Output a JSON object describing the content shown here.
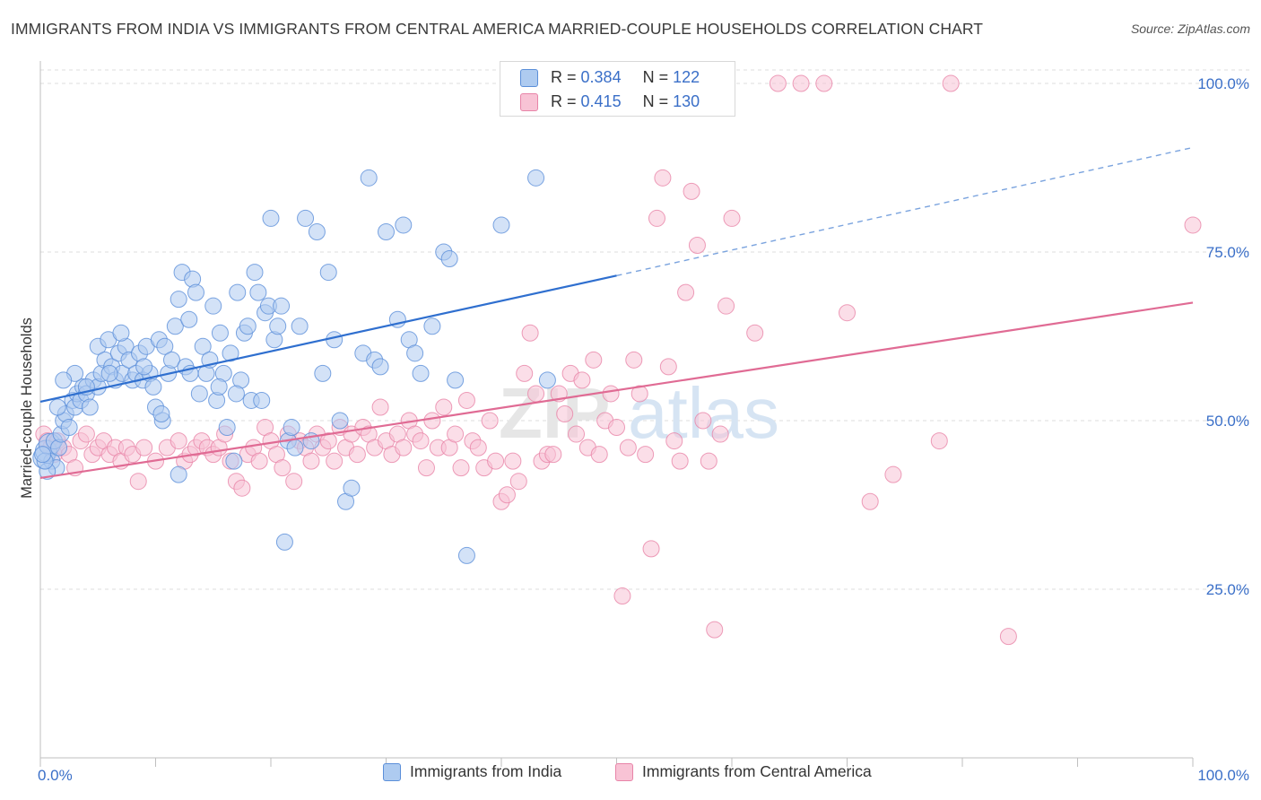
{
  "title": "IMMIGRANTS FROM INDIA VS IMMIGRANTS FROM CENTRAL AMERICA MARRIED-COUPLE HOUSEHOLDS CORRELATION CHART",
  "source": "Source: ZipAtlas.com",
  "watermark": {
    "zip": "ZIP",
    "atlas": "atlas"
  },
  "stats": [
    {
      "r_label": "R =",
      "r_value": "0.384",
      "n_label": "N =",
      "n_value": "122",
      "color": "#5b8fd9",
      "fill": "#aecbf0"
    },
    {
      "r_label": "R =",
      "r_value": "0.415",
      "n_label": "N =",
      "n_value": "130",
      "color": "#e884a8",
      "fill": "#f8c3d5"
    }
  ],
  "legend": [
    {
      "label": "Immigrants from India",
      "color": "#5b8fd9",
      "fill": "#aecbf0"
    },
    {
      "label": "Immigrants from Central America",
      "color": "#e884a8",
      "fill": "#f8c3d5"
    }
  ],
  "chart_data": {
    "type": "scatter",
    "title": "IMMIGRANTS FROM INDIA VS IMMIGRANTS FROM CENTRAL AMERICA MARRIED-COUPLE HOUSEHOLDS CORRELATION CHART",
    "xlabel": "",
    "ylabel": "Married-couple Households",
    "xlim": [
      0,
      100
    ],
    "ylim": [
      0,
      102
    ],
    "x_tick_labels": [
      "0.0%",
      "100.0%"
    ],
    "y_ticks": [
      25,
      50,
      75,
      100
    ],
    "y_tick_labels": [
      "25.0%",
      "50.0%",
      "75.0%",
      "100.0%"
    ],
    "grid": true,
    "legend_position": "bottom",
    "series": [
      {
        "name": "Immigrants from India",
        "color": "#5b8fd9",
        "fill": "#aecbf0",
        "trend": {
          "x0": 0,
          "y0": 52.8,
          "x1": 50,
          "y1": 71.5,
          "dashed_to_x": 100,
          "dashed_to_y": 90.5
        },
        "points": [
          [
            0.3,
            44.5
          ],
          [
            0.5,
            45.5
          ],
          [
            0.8,
            46.5
          ],
          [
            1,
            44
          ],
          [
            1.2,
            47
          ],
          [
            1.4,
            43
          ],
          [
            1.6,
            46
          ],
          [
            1.8,
            48
          ],
          [
            2,
            50
          ],
          [
            2.2,
            51
          ],
          [
            2.5,
            49
          ],
          [
            2.8,
            53
          ],
          [
            3,
            52
          ],
          [
            3.2,
            54
          ],
          [
            3.5,
            53
          ],
          [
            3.7,
            55
          ],
          [
            4,
            54
          ],
          [
            4.3,
            52
          ],
          [
            4.6,
            56
          ],
          [
            5,
            55
          ],
          [
            5,
            61
          ],
          [
            5.3,
            57
          ],
          [
            5.6,
            59
          ],
          [
            5.9,
            62
          ],
          [
            6.2,
            58
          ],
          [
            6.5,
            56
          ],
          [
            6.8,
            60
          ],
          [
            7.1,
            57
          ],
          [
            7.4,
            61
          ],
          [
            7.7,
            59
          ],
          [
            8,
            56
          ],
          [
            8.3,
            57
          ],
          [
            8.6,
            60
          ],
          [
            8.9,
            56
          ],
          [
            9.2,
            61
          ],
          [
            9.5,
            57
          ],
          [
            9.8,
            55
          ],
          [
            10,
            52
          ],
          [
            10.3,
            62
          ],
          [
            10.6,
            50
          ],
          [
            10.8,
            61
          ],
          [
            11.1,
            57
          ],
          [
            11.4,
            59
          ],
          [
            11.7,
            64
          ],
          [
            12,
            68
          ],
          [
            12.3,
            72
          ],
          [
            12.6,
            58
          ],
          [
            12.9,
            65
          ],
          [
            13.2,
            71
          ],
          [
            13.5,
            69
          ],
          [
            13.8,
            54
          ],
          [
            14.1,
            61
          ],
          [
            14.4,
            57
          ],
          [
            14.7,
            59
          ],
          [
            15,
            67
          ],
          [
            15.3,
            53
          ],
          [
            15.6,
            63
          ],
          [
            15.9,
            57
          ],
          [
            16.2,
            49
          ],
          [
            16.5,
            60
          ],
          [
            16.8,
            44
          ],
          [
            17.1,
            69
          ],
          [
            17.4,
            56
          ],
          [
            17.7,
            63
          ],
          [
            18,
            64
          ],
          [
            18.3,
            53
          ],
          [
            18.6,
            72
          ],
          [
            18.9,
            69
          ],
          [
            19.2,
            53
          ],
          [
            19.5,
            66
          ],
          [
            19.8,
            67
          ],
          [
            20,
            80
          ],
          [
            20.3,
            62
          ],
          [
            20.6,
            64
          ],
          [
            20.9,
            67
          ],
          [
            21.2,
            32
          ],
          [
            21.5,
            47
          ],
          [
            21.8,
            49
          ],
          [
            22.1,
            46
          ],
          [
            22.5,
            64
          ],
          [
            23,
            80
          ],
          [
            23.5,
            47
          ],
          [
            24,
            78
          ],
          [
            24.5,
            57
          ],
          [
            25,
            72
          ],
          [
            25.5,
            62
          ],
          [
            26,
            50
          ],
          [
            26.5,
            38
          ],
          [
            27,
            40
          ],
          [
            28,
            60
          ],
          [
            28.5,
            86
          ],
          [
            29,
            59
          ],
          [
            29.5,
            58
          ],
          [
            30,
            78
          ],
          [
            31,
            65
          ],
          [
            31.5,
            79
          ],
          [
            32,
            62
          ],
          [
            32.5,
            60
          ],
          [
            33,
            57
          ],
          [
            34,
            64
          ],
          [
            35,
            75
          ],
          [
            35.5,
            74
          ],
          [
            36,
            56
          ],
          [
            37,
            30
          ],
          [
            40,
            79
          ],
          [
            43,
            86
          ],
          [
            44,
            56
          ],
          [
            12,
            42
          ],
          [
            10.5,
            51
          ],
          [
            15.5,
            55
          ],
          [
            13,
            57
          ],
          [
            17,
            54
          ],
          [
            6,
            57
          ],
          [
            7,
            63
          ],
          [
            9,
            58
          ],
          [
            4,
            55
          ],
          [
            3,
            57
          ],
          [
            2,
            56
          ],
          [
            1.5,
            52
          ],
          [
            0.6,
            42.5
          ],
          [
            0.4,
            44
          ],
          [
            0.2,
            45
          ]
        ]
      },
      {
        "name": "Immigrants from Central America",
        "color": "#e884a8",
        "fill": "#f8c3d5",
        "trend": {
          "x0": 0,
          "y0": 41.5,
          "x1": 100,
          "y1": 67.5
        },
        "points": [
          [
            0.3,
            48
          ],
          [
            0.6,
            47
          ],
          [
            0.9,
            46
          ],
          [
            1.2,
            45
          ],
          [
            1.5,
            47
          ],
          [
            2,
            46
          ],
          [
            2.5,
            45
          ],
          [
            3,
            43
          ],
          [
            3.5,
            47
          ],
          [
            4,
            48
          ],
          [
            4.5,
            45
          ],
          [
            5,
            46
          ],
          [
            5.5,
            47
          ],
          [
            6,
            45
          ],
          [
            6.5,
            46
          ],
          [
            7,
            44
          ],
          [
            7.5,
            46
          ],
          [
            8,
            45
          ],
          [
            8.5,
            41
          ],
          [
            9,
            46
          ],
          [
            10,
            44
          ],
          [
            11,
            46
          ],
          [
            12,
            47
          ],
          [
            12.5,
            44
          ],
          [
            13,
            45
          ],
          [
            13.5,
            46
          ],
          [
            14,
            47
          ],
          [
            14.5,
            46
          ],
          [
            15,
            45
          ],
          [
            15.5,
            46
          ],
          [
            16,
            48
          ],
          [
            16.5,
            44
          ],
          [
            17,
            41
          ],
          [
            17.5,
            40
          ],
          [
            18,
            45
          ],
          [
            18.5,
            46
          ],
          [
            19,
            44
          ],
          [
            19.5,
            49
          ],
          [
            20,
            47
          ],
          [
            20.5,
            45
          ],
          [
            21,
            43
          ],
          [
            21.5,
            48
          ],
          [
            22,
            41
          ],
          [
            22.5,
            47
          ],
          [
            23,
            46
          ],
          [
            23.5,
            44
          ],
          [
            24,
            48
          ],
          [
            24.5,
            46
          ],
          [
            25,
            47
          ],
          [
            25.5,
            44
          ],
          [
            26,
            49
          ],
          [
            26.5,
            46
          ],
          [
            27,
            48
          ],
          [
            27.5,
            45
          ],
          [
            28,
            49
          ],
          [
            28.5,
            48
          ],
          [
            29,
            46
          ],
          [
            29.5,
            52
          ],
          [
            30,
            47
          ],
          [
            30.5,
            45
          ],
          [
            31,
            48
          ],
          [
            31.5,
            46
          ],
          [
            32,
            50
          ],
          [
            32.5,
            48
          ],
          [
            33,
            47
          ],
          [
            33.5,
            43
          ],
          [
            34,
            50
          ],
          [
            34.5,
            46
          ],
          [
            35,
            52
          ],
          [
            35.5,
            46
          ],
          [
            36,
            48
          ],
          [
            36.5,
            43
          ],
          [
            37,
            53
          ],
          [
            37.5,
            47
          ],
          [
            38,
            46
          ],
          [
            38.5,
            43
          ],
          [
            39,
            50
          ],
          [
            39.5,
            44
          ],
          [
            40,
            38
          ],
          [
            40.5,
            39
          ],
          [
            41,
            44
          ],
          [
            41.5,
            41
          ],
          [
            42,
            57
          ],
          [
            42.5,
            63
          ],
          [
            43,
            54
          ],
          [
            43.5,
            44
          ],
          [
            44,
            45
          ],
          [
            44.5,
            45
          ],
          [
            45,
            54
          ],
          [
            45.5,
            51
          ],
          [
            46,
            57
          ],
          [
            46.5,
            48
          ],
          [
            47,
            56
          ],
          [
            47.5,
            46
          ],
          [
            48,
            59
          ],
          [
            48.5,
            45
          ],
          [
            49,
            50
          ],
          [
            49.5,
            54
          ],
          [
            50,
            49
          ],
          [
            50.5,
            24
          ],
          [
            51,
            46
          ],
          [
            51.5,
            59
          ],
          [
            52,
            54
          ],
          [
            52.5,
            45
          ],
          [
            53,
            31
          ],
          [
            53.5,
            80
          ],
          [
            54,
            86
          ],
          [
            54.5,
            58
          ],
          [
            55,
            47
          ],
          [
            55.5,
            44
          ],
          [
            56,
            69
          ],
          [
            56.5,
            84
          ],
          [
            57,
            76
          ],
          [
            57.5,
            50
          ],
          [
            58,
            44
          ],
          [
            58.5,
            19
          ],
          [
            59,
            48
          ],
          [
            59.5,
            67
          ],
          [
            60,
            80
          ],
          [
            62,
            63
          ],
          [
            64,
            100
          ],
          [
            66,
            100
          ],
          [
            68,
            100
          ],
          [
            70,
            66
          ],
          [
            72,
            38
          ],
          [
            74,
            42
          ],
          [
            78,
            47
          ],
          [
            79,
            100
          ],
          [
            84,
            18
          ],
          [
            100,
            79
          ]
        ]
      }
    ]
  }
}
